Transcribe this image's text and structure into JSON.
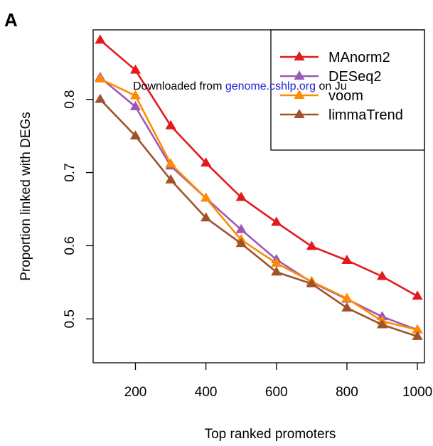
{
  "panel_label": "A",
  "watermark": {
    "prefix": "Downloaded from ",
    "link": "genome.cshlp.org",
    "suffix": " on Ju"
  },
  "chart_data": {
    "type": "line",
    "title": "",
    "xlabel": "Top ranked promoters",
    "ylabel": "Proportion linked with DEGs",
    "x": [
      100,
      200,
      300,
      400,
      500,
      600,
      700,
      800,
      900,
      1000
    ],
    "xlim": [
      80,
      1020
    ],
    "ylim": [
      0.44,
      0.895
    ],
    "xticks": [
      200,
      400,
      600,
      800,
      1000
    ],
    "yticks": [
      0.5,
      0.6,
      0.7,
      0.8
    ],
    "grid": false,
    "legend_position": "top-right",
    "series": [
      {
        "name": "MAnorm2",
        "color": "#e31a1c",
        "values": [
          0.881,
          0.84,
          0.764,
          0.713,
          0.666,
          0.632,
          0.599,
          0.58,
          0.558,
          0.531
        ]
      },
      {
        "name": "DESeq2",
        "color": "#9b59b6",
        "values": [
          0.83,
          0.79,
          0.709,
          0.665,
          0.622,
          0.581,
          0.55,
          0.527,
          0.503,
          0.485
        ]
      },
      {
        "name": "voom",
        "color": "#ff8c00",
        "values": [
          0.828,
          0.805,
          0.712,
          0.665,
          0.608,
          0.576,
          0.551,
          0.528,
          0.497,
          0.485
        ]
      },
      {
        "name": "limmaTrend",
        "color": "#a0522d",
        "values": [
          0.8,
          0.75,
          0.69,
          0.638,
          0.603,
          0.564,
          0.548,
          0.515,
          0.492,
          0.476
        ]
      }
    ]
  }
}
